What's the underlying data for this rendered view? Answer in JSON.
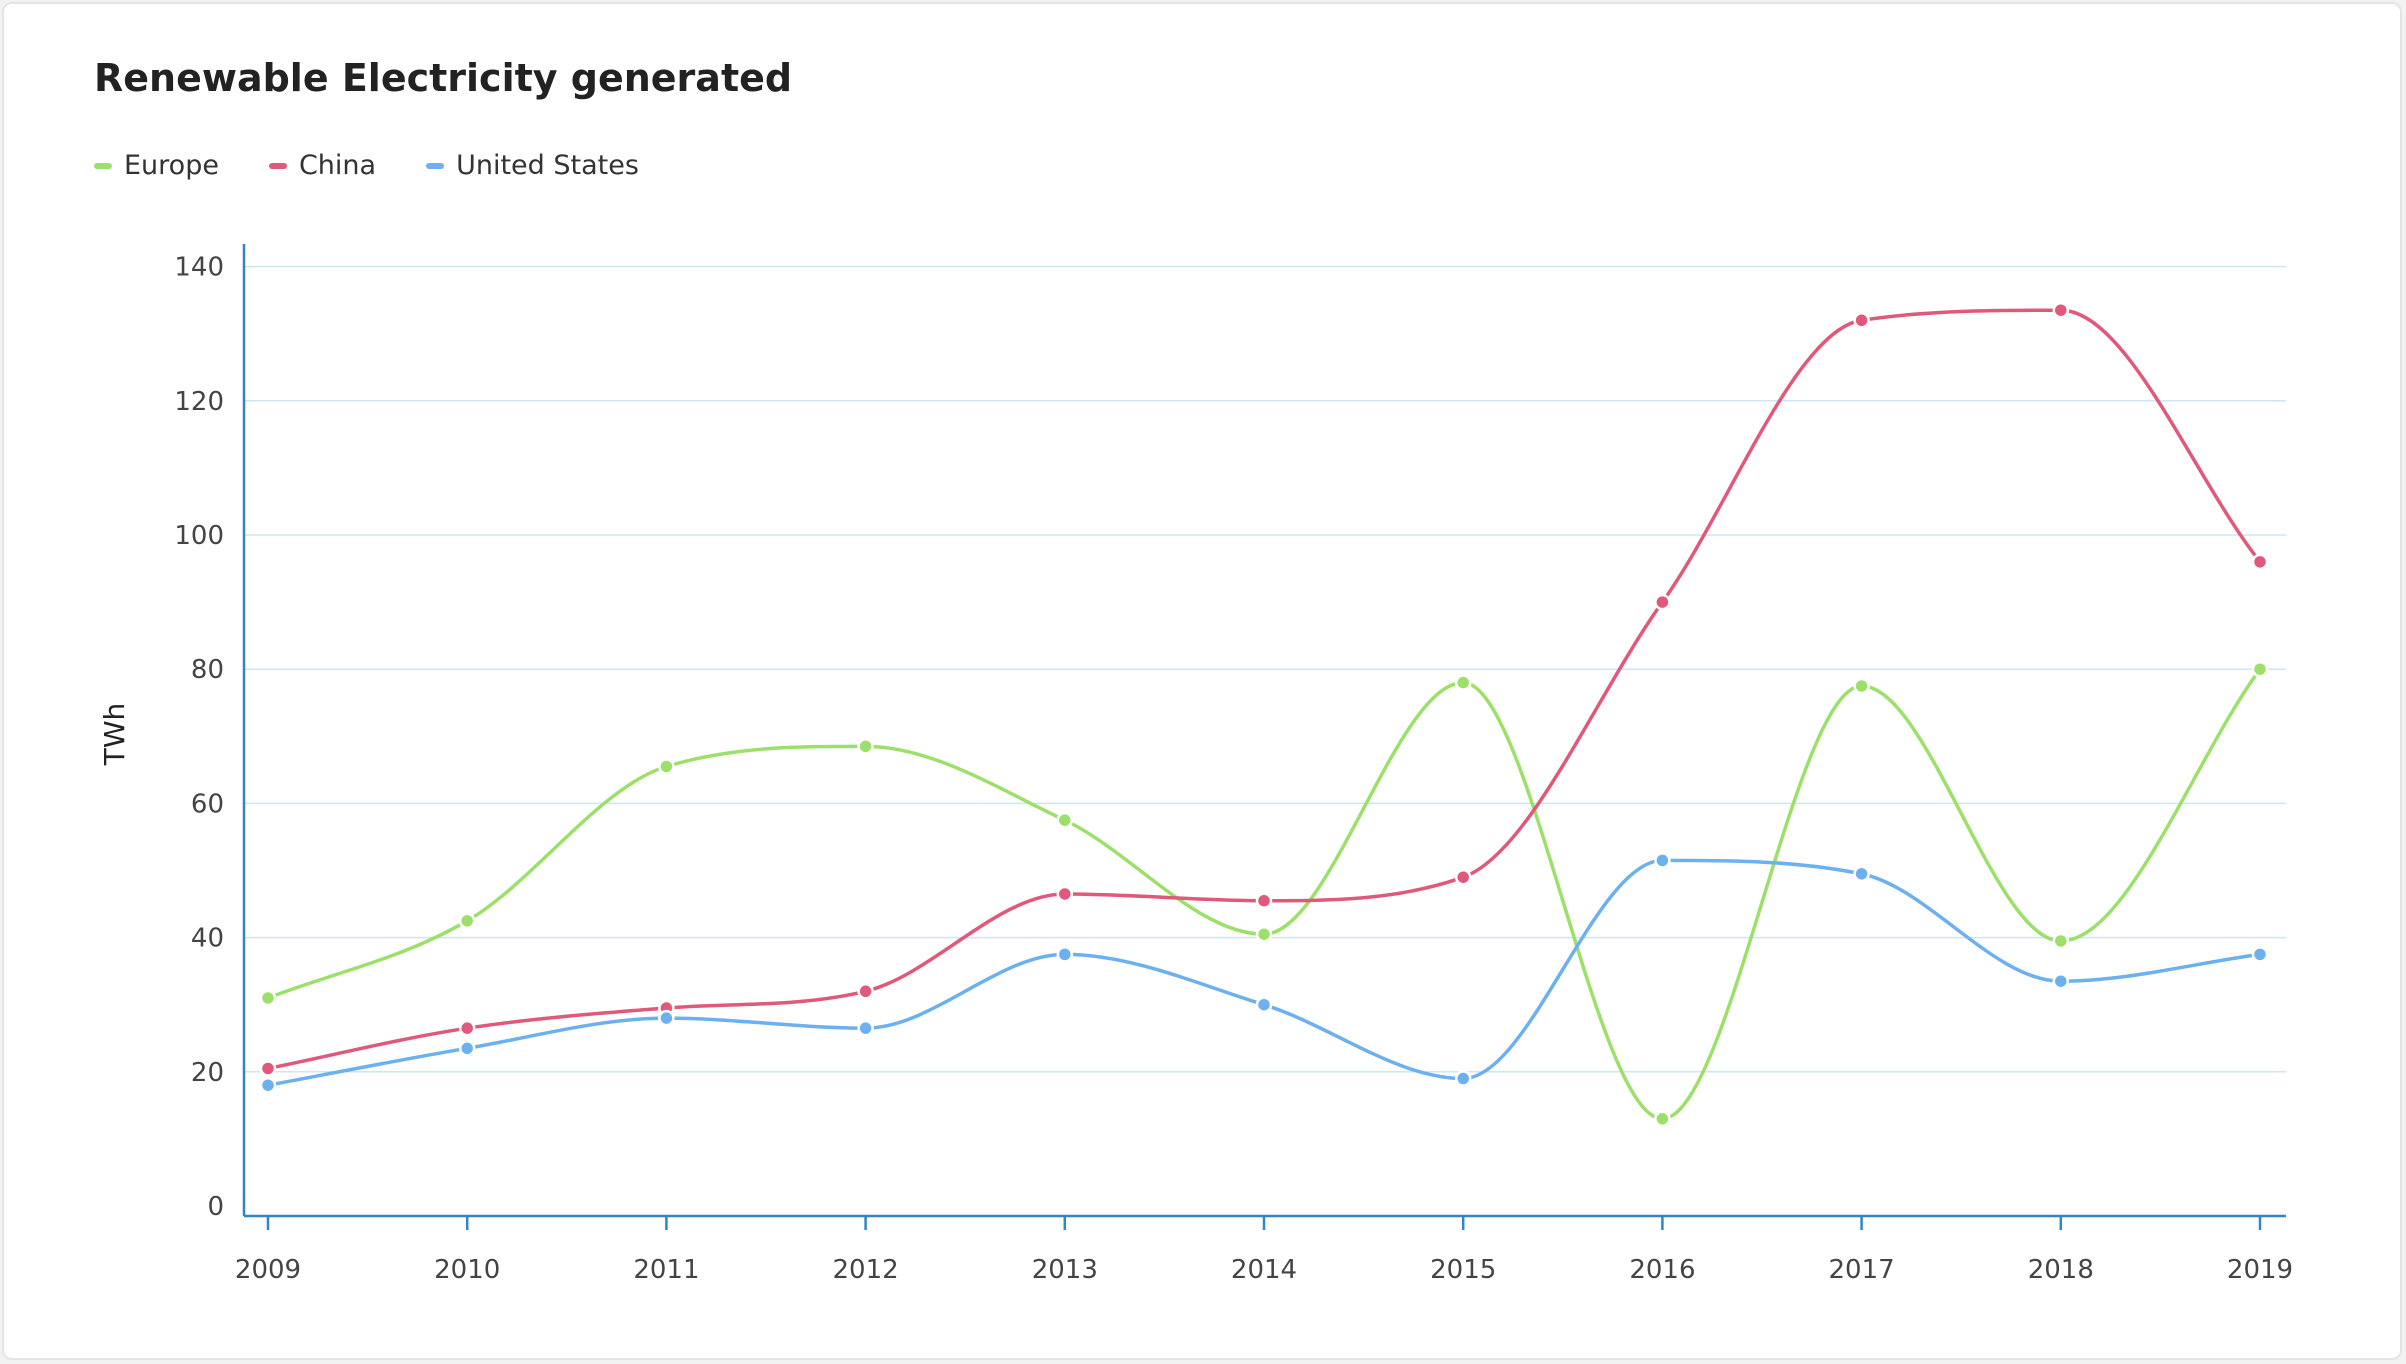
{
  "chart_data": {
    "type": "line",
    "title": "Renewable Electricity generated",
    "ylabel": "TWh",
    "xlabel": "",
    "categories": [
      "2009",
      "2010",
      "2011",
      "2012",
      "2013",
      "2014",
      "2015",
      "2016",
      "2017",
      "2018",
      "2019"
    ],
    "yticks": [
      "0",
      "20",
      "40",
      "60",
      "80",
      "100",
      "120",
      "140"
    ],
    "ylim": [
      0,
      140
    ],
    "grid": true,
    "legend_position": "top-left",
    "series": [
      {
        "name": "Europe",
        "color": "#9ce06a",
        "values": [
          31,
          42.5,
          65.5,
          68.5,
          57.5,
          40.5,
          78,
          13,
          77.5,
          39.5,
          80
        ]
      },
      {
        "name": "China",
        "color": "#e0587a",
        "values": [
          20.5,
          26.5,
          29.5,
          32,
          46.5,
          45.5,
          49,
          90,
          132,
          133.5,
          96
        ]
      },
      {
        "name": "United States",
        "color": "#6cb0f0",
        "values": [
          18,
          23.5,
          28,
          26.5,
          37.5,
          30,
          19,
          51.5,
          49.5,
          33.5,
          37.5
        ]
      }
    ]
  }
}
